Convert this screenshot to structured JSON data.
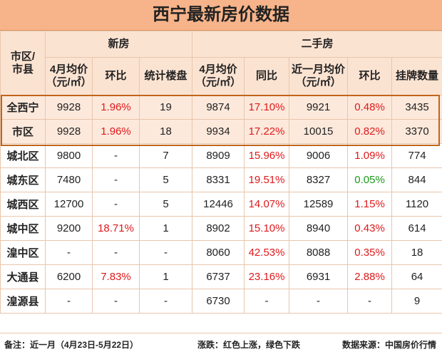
{
  "title": "西宁最新房价数据",
  "headers": {
    "region": "市区/市县",
    "new_group": "新房",
    "used_group": "二手房",
    "new_cols": [
      "4月均价（元/㎡）",
      "环比",
      "统计楼盘"
    ],
    "used_cols": [
      "4月均价（元/㎡）",
      "同比",
      "近一月均价（元/㎡）",
      "环比",
      "挂牌数量"
    ]
  },
  "rows": [
    [
      "全西宁",
      "9928",
      "1.96%",
      "19",
      "9874",
      "17.10%",
      "9921",
      "0.48%",
      "3435"
    ],
    [
      "市区",
      "9928",
      "1.96%",
      "18",
      "9934",
      "17.22%",
      "10015",
      "0.82%",
      "3370"
    ],
    [
      "城北区",
      "9800",
      "-",
      "7",
      "8909",
      "15.96%",
      "9006",
      "1.09%",
      "774"
    ],
    [
      "城东区",
      "7480",
      "-",
      "5",
      "8331",
      "19.51%",
      "8327",
      "0.05%",
      "844"
    ],
    [
      "城西区",
      "12700",
      "-",
      "5",
      "12446",
      "14.07%",
      "12589",
      "1.15%",
      "1120"
    ],
    [
      "城中区",
      "9200",
      "18.71%",
      "1",
      "8902",
      "15.10%",
      "8940",
      "0.43%",
      "614"
    ],
    [
      "湟中区",
      "-",
      "-",
      "-",
      "8060",
      "42.53%",
      "8088",
      "0.35%",
      "18"
    ],
    [
      "大通县",
      "6200",
      "7.83%",
      "1",
      "6737",
      "23.16%",
      "6931",
      "2.88%",
      "64"
    ],
    [
      "湟源县",
      "-",
      "-",
      "-",
      "6730",
      "-",
      "-",
      "-",
      "9"
    ]
  ],
  "footer": {
    "note": "备注：近一月（4月23日-5月22日）",
    "legend": "涨跌：红色上涨，绿色下跌",
    "source": "数据来源：中国房价行情"
  },
  "colors": {
    "up": "#e0191b",
    "down": "#1a9a1a",
    "header_bg": "#fbe3d2",
    "title_bg": "#f7b48a"
  }
}
